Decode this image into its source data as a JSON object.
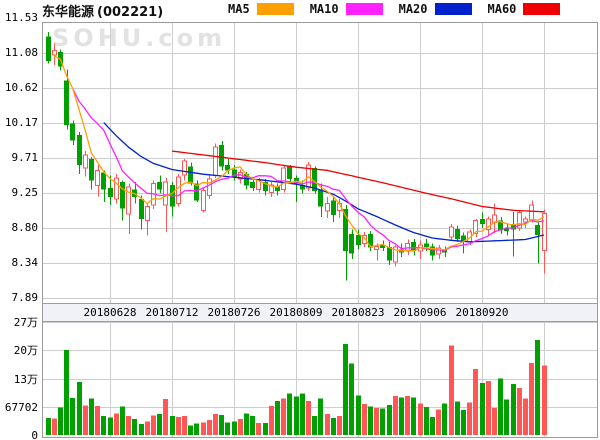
{
  "header": {
    "title": "东华能源",
    "code": "(002221)",
    "legend": [
      {
        "label": "MA5",
        "color": "#ffa000"
      },
      {
        "label": "MA10",
        "color": "#ff22ff"
      },
      {
        "label": "MA20",
        "color": "#0022cc"
      },
      {
        "label": "MA60",
        "color": "#ee0000"
      }
    ]
  },
  "watermark": "SOHU.com",
  "axes": {
    "price_ticks": [
      "11.53",
      "11.08",
      "10.62",
      "10.17",
      "9.71",
      "9.25",
      "8.80",
      "8.34",
      "7.89"
    ],
    "date_ticks": [
      "20180628",
      "20180712",
      "20180726",
      "20180809",
      "20180823",
      "20180906",
      "20180920"
    ],
    "volume_ticks": [
      {
        "label": "27万",
        "value": 270808
      },
      {
        "label": "20万",
        "value": 203106
      },
      {
        "label": "13万",
        "value": 135404
      },
      {
        "label": "67702",
        "value": 67702
      },
      {
        "label": "0",
        "value": 0
      }
    ]
  },
  "chart_data": {
    "type": "candlestick",
    "title": "东华能源(002221) 日K线",
    "price_range": [
      7.89,
      11.53
    ],
    "volume_max": 270808,
    "volume_values_in_wan": true,
    "up_color": "#ff5656",
    "down_color": "#00a000",
    "candle_up_style": "hollow-red",
    "candle_down_style": "solid-green",
    "columns": [
      "date",
      "open",
      "high",
      "low",
      "close",
      "volume_wan"
    ],
    "x_gridline_candle_indices": [
      11,
      21,
      31,
      41,
      51,
      61,
      71,
      81
    ],
    "candles": [
      [
        "20180613",
        11.29,
        11.35,
        10.94,
        10.97,
        4.1
      ],
      [
        "20180614",
        11.05,
        11.2,
        10.92,
        11.11,
        4.0
      ],
      [
        "20180615",
        11.09,
        11.12,
        10.85,
        10.9,
        6.6
      ],
      [
        "20180619",
        10.72,
        10.86,
        10.08,
        10.14,
        20.4
      ],
      [
        "20180620",
        10.16,
        10.2,
        9.88,
        9.94,
        8.9
      ],
      [
        "20180621",
        10.01,
        10.05,
        9.5,
        9.62,
        12.7
      ],
      [
        "20180622",
        9.58,
        9.8,
        9.47,
        9.75,
        7.1
      ],
      [
        "20180625",
        9.7,
        9.72,
        9.3,
        9.42,
        8.8
      ],
      [
        "20180626",
        9.35,
        9.62,
        9.21,
        9.55,
        6.9
      ],
      [
        "20180627",
        9.52,
        9.55,
        9.14,
        9.3,
        4.6
      ],
      [
        "20180628",
        9.32,
        9.48,
        9.1,
        9.2,
        4.2
      ],
      [
        "20180629",
        9.18,
        9.5,
        9.12,
        9.45,
        5.2
      ],
      [
        "20180702",
        9.4,
        9.42,
        8.9,
        9.05,
        6.8
      ],
      [
        "20180703",
        8.98,
        9.38,
        8.72,
        9.33,
        4.5
      ],
      [
        "20180704",
        9.3,
        9.4,
        9.12,
        9.2,
        3.8
      ],
      [
        "20180705",
        9.18,
        9.22,
        8.78,
        8.92,
        2.6
      ],
      [
        "20180706",
        8.9,
        9.12,
        8.7,
        9.08,
        3.2
      ],
      [
        "20180709",
        9.1,
        9.42,
        9.05,
        9.38,
        4.7
      ],
      [
        "20180710",
        9.4,
        9.48,
        9.25,
        9.3,
        5.0
      ],
      [
        "20180711",
        9.1,
        9.45,
        8.75,
        9.4,
        8.6
      ],
      [
        "20180712",
        9.36,
        9.4,
        8.95,
        9.08,
        4.5
      ],
      [
        "20180713",
        9.12,
        9.5,
        9.08,
        9.46,
        4.3
      ],
      [
        "20180716",
        9.49,
        9.7,
        9.42,
        9.67,
        4.5
      ],
      [
        "20180717",
        9.6,
        9.65,
        9.35,
        9.38,
        2.3
      ],
      [
        "20180718",
        9.38,
        9.42,
        9.14,
        9.16,
        2.7
      ],
      [
        "20180719",
        9.03,
        9.32,
        9.0,
        9.29,
        3.0
      ],
      [
        "20180720",
        9.22,
        9.48,
        9.18,
        9.44,
        3.6
      ],
      [
        "20180723",
        9.48,
        9.9,
        9.45,
        9.85,
        5.0
      ],
      [
        "20180724",
        9.88,
        9.93,
        9.55,
        9.6,
        4.8
      ],
      [
        "20180725",
        9.62,
        9.7,
        9.5,
        9.55,
        3.0
      ],
      [
        "20180726",
        9.56,
        9.62,
        9.42,
        9.46,
        3.2
      ],
      [
        "20180727",
        9.44,
        9.56,
        9.38,
        9.52,
        3.8
      ],
      [
        "20180730",
        9.5,
        9.53,
        9.3,
        9.35,
        5.2
      ],
      [
        "20180731",
        9.4,
        9.44,
        9.28,
        9.32,
        4.6
      ],
      [
        "20180801",
        9.3,
        9.45,
        9.26,
        9.42,
        2.9
      ],
      [
        "20180802",
        9.4,
        9.44,
        9.22,
        9.28,
        2.9
      ],
      [
        "20180803",
        9.26,
        9.4,
        9.2,
        9.36,
        7.0
      ],
      [
        "20180806",
        9.34,
        9.38,
        9.22,
        9.28,
        8.2
      ],
      [
        "20180807",
        9.3,
        9.62,
        9.26,
        9.58,
        8.7
      ],
      [
        "20180808",
        9.6,
        9.62,
        9.4,
        9.44,
        10.0
      ],
      [
        "20180809",
        9.45,
        9.48,
        9.14,
        9.38,
        9.2
      ],
      [
        "20180810",
        9.36,
        9.42,
        9.25,
        9.3,
        10.0
      ],
      [
        "20180813",
        9.32,
        9.66,
        9.28,
        9.62,
        8.2
      ],
      [
        "20180814",
        9.58,
        9.6,
        9.25,
        9.28,
        4.6
      ],
      [
        "20180815",
        9.3,
        9.38,
        8.94,
        9.08,
        8.7
      ],
      [
        "20180816",
        9.02,
        9.2,
        8.93,
        9.12,
        5.0
      ],
      [
        "20180817",
        9.16,
        9.2,
        8.88,
        8.97,
        4.1
      ],
      [
        "20180820",
        9.03,
        9.18,
        8.93,
        9.12,
        4.5
      ],
      [
        "20180821",
        9.05,
        9.1,
        8.12,
        8.5,
        21.8
      ],
      [
        "20180822",
        8.72,
        8.78,
        8.4,
        8.47,
        17.1
      ],
      [
        "20180823",
        8.71,
        8.78,
        8.52,
        8.58,
        9.5
      ],
      [
        "20180824",
        8.6,
        8.75,
        8.55,
        8.7,
        7.4
      ],
      [
        "20180827",
        8.72,
        8.76,
        8.5,
        8.55,
        6.8
      ],
      [
        "20180828",
        8.52,
        8.6,
        8.38,
        8.56,
        6.5
      ],
      [
        "20180829",
        8.58,
        8.64,
        8.5,
        8.54,
        6.4
      ],
      [
        "20180830",
        8.55,
        8.62,
        8.32,
        8.38,
        7.2
      ],
      [
        "20180831",
        8.36,
        8.58,
        8.3,
        8.55,
        9.4
      ],
      [
        "20180903",
        8.52,
        8.6,
        8.42,
        8.48,
        9.0
      ],
      [
        "20180904",
        8.5,
        8.65,
        8.45,
        8.6,
        9.4
      ],
      [
        "20180905",
        8.62,
        8.66,
        8.44,
        8.5,
        9.0
      ],
      [
        "20180906",
        8.5,
        8.64,
        8.4,
        8.58,
        7.6
      ],
      [
        "20180907",
        8.6,
        8.66,
        8.5,
        8.55,
        6.7
      ],
      [
        "20180910",
        8.56,
        8.6,
        8.38,
        8.44,
        4.3
      ],
      [
        "20180911",
        8.46,
        8.58,
        8.4,
        8.54,
        6.1
      ],
      [
        "20180912",
        8.52,
        8.56,
        8.42,
        8.48,
        7.5
      ],
      [
        "20180913",
        8.68,
        8.85,
        8.64,
        8.81,
        21.5
      ],
      [
        "20180914",
        8.79,
        8.83,
        8.62,
        8.66,
        8.0
      ],
      [
        "20180917",
        8.7,
        8.74,
        8.47,
        8.64,
        6.0
      ],
      [
        "20180918",
        8.62,
        8.78,
        8.58,
        8.75,
        7.8
      ],
      [
        "20180919",
        8.73,
        8.92,
        8.68,
        8.9,
        15.8
      ],
      [
        "20180920",
        8.92,
        9.0,
        8.8,
        8.85,
        12.5
      ],
      [
        "20180921",
        8.78,
        8.95,
        8.71,
        8.92,
        13.0
      ],
      [
        "20180925",
        8.87,
        9.12,
        8.73,
        8.97,
        6.5
      ],
      [
        "20180926",
        8.9,
        8.94,
        8.72,
        8.77,
        13.5
      ],
      [
        "20180927",
        8.8,
        8.86,
        8.7,
        8.76,
        8.5
      ],
      [
        "20180928",
        8.85,
        9.01,
        8.43,
        8.78,
        12.2
      ],
      [
        "20181008",
        8.8,
        9.03,
        8.76,
        9.0,
        11.3
      ],
      [
        "20181009",
        8.88,
        8.95,
        8.8,
        8.92,
        8.7
      ],
      [
        "20181010",
        8.9,
        9.16,
        8.87,
        9.1,
        17.2
      ],
      [
        "20181011",
        8.84,
        8.88,
        8.34,
        8.71,
        22.8
      ],
      [
        "20181012",
        8.51,
        9.04,
        8.21,
        8.99,
        16.6
      ]
    ],
    "overlays": {
      "ma5": {
        "color": "#ffa000",
        "computed_window": 5
      },
      "ma10": {
        "color": "#ff22ff",
        "computed_window": 10
      },
      "ma20": {
        "color": "#0022cc",
        "anchors": [
          [
            10,
            10.17
          ],
          [
            12,
            10.0
          ],
          [
            14,
            9.85
          ],
          [
            16,
            9.73
          ],
          [
            18,
            9.64
          ],
          [
            21,
            9.56
          ],
          [
            26,
            9.5
          ],
          [
            31,
            9.46
          ],
          [
            36,
            9.42
          ],
          [
            41,
            9.37
          ],
          [
            44,
            9.32
          ],
          [
            47,
            9.24
          ],
          [
            49,
            9.15
          ],
          [
            51,
            9.05
          ],
          [
            54,
            8.95
          ],
          [
            57,
            8.84
          ],
          [
            60,
            8.74
          ],
          [
            63,
            8.67
          ],
          [
            66,
            8.64
          ],
          [
            69,
            8.62
          ],
          [
            72,
            8.63
          ],
          [
            75,
            8.64
          ],
          [
            78,
            8.65
          ],
          [
            81,
            8.71
          ]
        ]
      },
      "ma60": {
        "color": "#ee0000",
        "anchors": [
          [
            21,
            9.8
          ],
          [
            26,
            9.75
          ],
          [
            31,
            9.7
          ],
          [
            36,
            9.65
          ],
          [
            41,
            9.59
          ],
          [
            46,
            9.55
          ],
          [
            51,
            9.46
          ],
          [
            56,
            9.37
          ],
          [
            61,
            9.27
          ],
          [
            66,
            9.18
          ],
          [
            71,
            9.08
          ],
          [
            76,
            9.03
          ],
          [
            81,
            9.01
          ]
        ]
      }
    }
  }
}
